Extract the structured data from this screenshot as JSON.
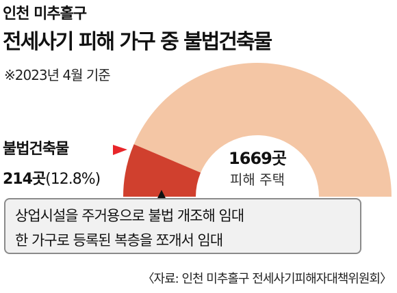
{
  "header": {
    "subtitle": "인천 미추홀구",
    "title": "전세사기 피해 가구 중 불법건축물",
    "note": "※2023년 4월 기준"
  },
  "chart_data": {
    "type": "pie",
    "shape": "half-donut",
    "title": "전세사기 피해 가구 중 불법건축물",
    "segments": [
      {
        "name": "불법건축물",
        "count_label": "214곳",
        "percent_label": "(12.8%)",
        "value": 214,
        "percent": 12.8,
        "color": "#d0402e"
      },
      {
        "name": "피해 주택",
        "count_label": "1669곳",
        "value": 1669,
        "color": "#f4c6a5"
      }
    ]
  },
  "callout": {
    "line1": "상업시설을 주거용으로 불법 개조해 임대",
    "line2": "한 가구로 등록된 복층을 쪼개서 임대"
  },
  "source": "〈자료: 인천 미추홀구 전세사기피해자대책위원회〉",
  "colors": {
    "illegal": "#d0402e",
    "total": "#f4c6a5",
    "marker": "#e8262a"
  }
}
